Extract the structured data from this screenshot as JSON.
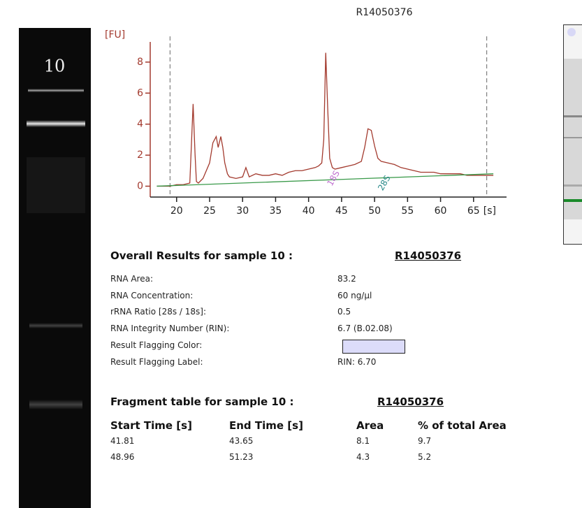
{
  "chart_data": {
    "type": "line",
    "title": "R14050376",
    "y_unit": "[FU]",
    "x_unit": "[s]",
    "x": [
      17,
      19,
      20,
      21,
      22,
      22.5,
      22.8,
      23,
      23.3,
      24,
      25,
      25.5,
      26,
      26.3,
      26.7,
      27,
      27.3,
      27.7,
      28,
      29,
      30,
      30.5,
      31,
      32,
      33,
      34,
      35,
      36,
      37,
      38,
      39,
      40,
      41,
      41.5,
      42,
      42.3,
      42.6,
      42.9,
      43.2,
      43.6,
      44,
      45,
      46,
      47,
      48,
      48.5,
      49,
      49.5,
      50,
      50.5,
      51,
      52,
      53,
      54,
      55,
      56,
      57,
      58,
      59,
      60,
      61,
      62,
      63,
      64,
      65,
      66,
      67,
      68
    ],
    "series": [
      {
        "color": "#a33a2e",
        "values": [
          0,
          0,
          0.1,
          0.1,
          0.2,
          5.3,
          2,
          0.3,
          0.2,
          0.5,
          1.5,
          2.8,
          3.2,
          2.5,
          3.2,
          2.5,
          1.5,
          0.8,
          0.6,
          0.5,
          0.6,
          1.2,
          0.6,
          0.8,
          0.7,
          0.7,
          0.8,
          0.7,
          0.9,
          1,
          1,
          1.1,
          1.2,
          1.3,
          1.5,
          3,
          8.6,
          5,
          1.8,
          1.2,
          1.1,
          1.2,
          1.3,
          1.4,
          1.6,
          2.5,
          3.7,
          3.6,
          2.6,
          1.8,
          1.6,
          1.5,
          1.4,
          1.2,
          1.1,
          1.0,
          0.9,
          0.9,
          0.9,
          0.8,
          0.8,
          0.8,
          0.8,
          0.7,
          0.7,
          0.7,
          0.7,
          0.7
        ]
      },
      {
        "color": "#3a9a4a",
        "x": [
          17,
          68
        ],
        "values": [
          0,
          0.8
        ]
      }
    ],
    "xlim": [
      16,
      70
    ],
    "ylim": [
      -0.7,
      9.3
    ],
    "xticks": [
      20,
      25,
      30,
      35,
      40,
      45,
      50,
      55,
      60,
      65
    ],
    "yticks": [
      0,
      2,
      4,
      6,
      8
    ],
    "xmarkers": [
      19,
      67
    ],
    "annotations": [
      {
        "text": "18S",
        "x": 43.8,
        "y": 0.5,
        "color": "#c070d0"
      },
      {
        "text": "28S",
        "x": 51.5,
        "y": 0.2,
        "color": "#2a8a8a"
      }
    ]
  },
  "gel_lane": "10",
  "results": {
    "title": "Overall Results for sample 10  :",
    "sample": "R14050376",
    "rows": [
      [
        "RNA Area:",
        "83.2"
      ],
      [
        "RNA Concentration:",
        "60 ng/µl"
      ],
      [
        "rRNA Ratio [28s / 18s]:",
        "0.5"
      ],
      [
        "RNA Integrity Number (RIN):",
        "6.7   (B.02.08)"
      ],
      [
        "Result Flagging Color:",
        null
      ],
      [
        "Result Flagging Label:",
        "RIN: 6.70"
      ]
    ],
    "flag_color": "#dcdcfa"
  },
  "fragments": {
    "title": "Fragment table for sample 10  :",
    "sample": "R14050376",
    "headers": [
      "Start Time [s]",
      "End Time [s]",
      "Area",
      "% of total Area"
    ],
    "rows": [
      [
        "41.81",
        "43.65",
        "8.1",
        "9.7"
      ],
      [
        "48.96",
        "51.23",
        "4.3",
        "5.2"
      ]
    ]
  }
}
